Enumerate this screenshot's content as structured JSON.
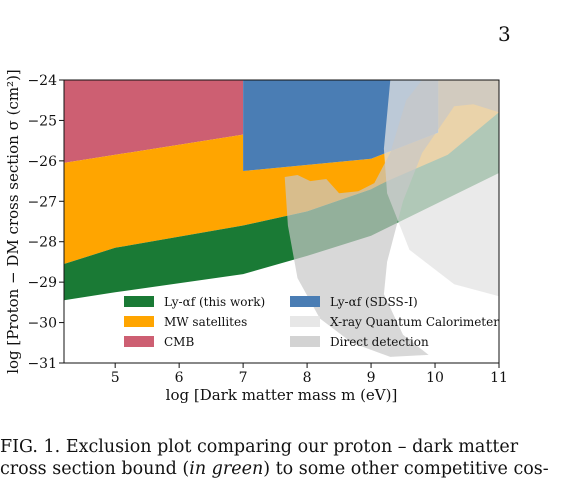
{
  "page_number": "3",
  "caption": {
    "prefix": "FIG. 1.",
    "line1_text": "Exclusion plot comparing our proton – dark matter",
    "line2_start": "cross section bound (",
    "line2_italic": "in green",
    "line2_end": ") to some other competitive cos-"
  },
  "chart_data": {
    "type": "area",
    "xlabel": "log [Dark matter mass m (eV)]",
    "ylabel": "log [Proton − DM cross section σ (cm²)]",
    "xlim": [
      4.2,
      11
    ],
    "ylim": [
      -31,
      -24
    ],
    "xticks": [
      5,
      6,
      7,
      8,
      9,
      10,
      11
    ],
    "yticks": [
      -24,
      -25,
      -26,
      -27,
      -28,
      -29,
      -30,
      -31
    ],
    "xtick_labels": [
      "5",
      "6",
      "7",
      "8",
      "9",
      "10",
      "11"
    ],
    "ytick_labels": [
      "−24",
      "−25",
      "−26",
      "−27",
      "−28",
      "−29",
      "−30",
      "−31"
    ],
    "grid": false,
    "legend_position": "lower-center",
    "series": [
      {
        "key": "cmb",
        "name": "CMB",
        "color": "#cd5f72",
        "opacity": 1,
        "polygon": [
          [
            4.2,
            -26.05
          ],
          [
            7,
            -25.35
          ],
          [
            7,
            -24
          ],
          [
            4.2,
            -24
          ]
        ]
      },
      {
        "key": "mw",
        "name": "MW satellites",
        "color": "#ffa500",
        "opacity": 1,
        "polygon": [
          [
            4.2,
            -28.55
          ],
          [
            5,
            -28.15
          ],
          [
            7,
            -27.6
          ],
          [
            8,
            -27.25
          ],
          [
            9,
            -26.7
          ],
          [
            11,
            -25.9
          ],
          [
            11,
            -24
          ],
          [
            10.05,
            -24
          ],
          [
            10.05,
            -25.3
          ],
          [
            9,
            -25.95
          ],
          [
            7,
            -26.25
          ],
          [
            7,
            -25.35
          ],
          [
            4.2,
            -26.05
          ]
        ]
      },
      {
        "key": "lya_this",
        "name": "Ly-αf (this work)",
        "color": "#1a7a35",
        "opacity": 1,
        "polygon": [
          [
            4.2,
            -29.45
          ],
          [
            5,
            -29.25
          ],
          [
            7,
            -28.8
          ],
          [
            8,
            -28.35
          ],
          [
            9,
            -27.85
          ],
          [
            11,
            -26.3
          ],
          [
            11,
            -24.8
          ],
          [
            10.2,
            -25.85
          ],
          [
            9.25,
            -26.5
          ],
          [
            9,
            -26.7
          ],
          [
            8,
            -27.25
          ],
          [
            7,
            -27.6
          ],
          [
            5,
            -28.15
          ],
          [
            4.2,
            -28.55
          ]
        ]
      },
      {
        "key": "sdss",
        "name": "Ly-αf (SDSS-I)",
        "color": "#4a7db4",
        "opacity": 1,
        "polygon": [
          [
            7,
            -24
          ],
          [
            10.05,
            -24
          ],
          [
            10.05,
            -25.3
          ],
          [
            9,
            -25.95
          ],
          [
            7,
            -26.25
          ]
        ]
      },
      {
        "key": "xray",
        "name": "X-ray Quantum Calorimeter",
        "color": "#e3e3e3",
        "opacity": 0.75,
        "polygon": [
          [
            9.3,
            -24
          ],
          [
            11,
            -24
          ],
          [
            11,
            -29.35
          ],
          [
            10.3,
            -29.05
          ],
          [
            9.6,
            -28.2
          ],
          [
            9.25,
            -26.8
          ],
          [
            9.2,
            -25.7
          ]
        ]
      },
      {
        "key": "direct",
        "name": "Direct detection",
        "color": "#c8c8c8",
        "opacity": 0.7,
        "polygon": [
          [
            7.65,
            -26.4
          ],
          [
            7.85,
            -26.35
          ],
          [
            8.05,
            -26.5
          ],
          [
            8.3,
            -26.45
          ],
          [
            8.5,
            -26.8
          ],
          [
            8.8,
            -26.75
          ],
          [
            9.05,
            -26.55
          ],
          [
            9.3,
            -25.8
          ],
          [
            9.55,
            -24.5
          ],
          [
            9.8,
            -24
          ],
          [
            11,
            -24
          ],
          [
            11,
            -24.8
          ],
          [
            10.6,
            -24.6
          ],
          [
            10.3,
            -24.65
          ],
          [
            9.8,
            -25.8
          ],
          [
            9.5,
            -27
          ],
          [
            9.25,
            -28.5
          ],
          [
            9.2,
            -29.3
          ],
          [
            9.5,
            -30.3
          ],
          [
            9.9,
            -30.8
          ],
          [
            9.3,
            -30.85
          ],
          [
            8.7,
            -30.5
          ],
          [
            8.2,
            -29.9
          ],
          [
            7.85,
            -28.9
          ],
          [
            7.7,
            -27.6
          ]
        ]
      }
    ],
    "legend_left": [
      "lya_this",
      "mw",
      "cmb"
    ],
    "legend_right": [
      "sdss",
      "xray",
      "direct"
    ]
  }
}
